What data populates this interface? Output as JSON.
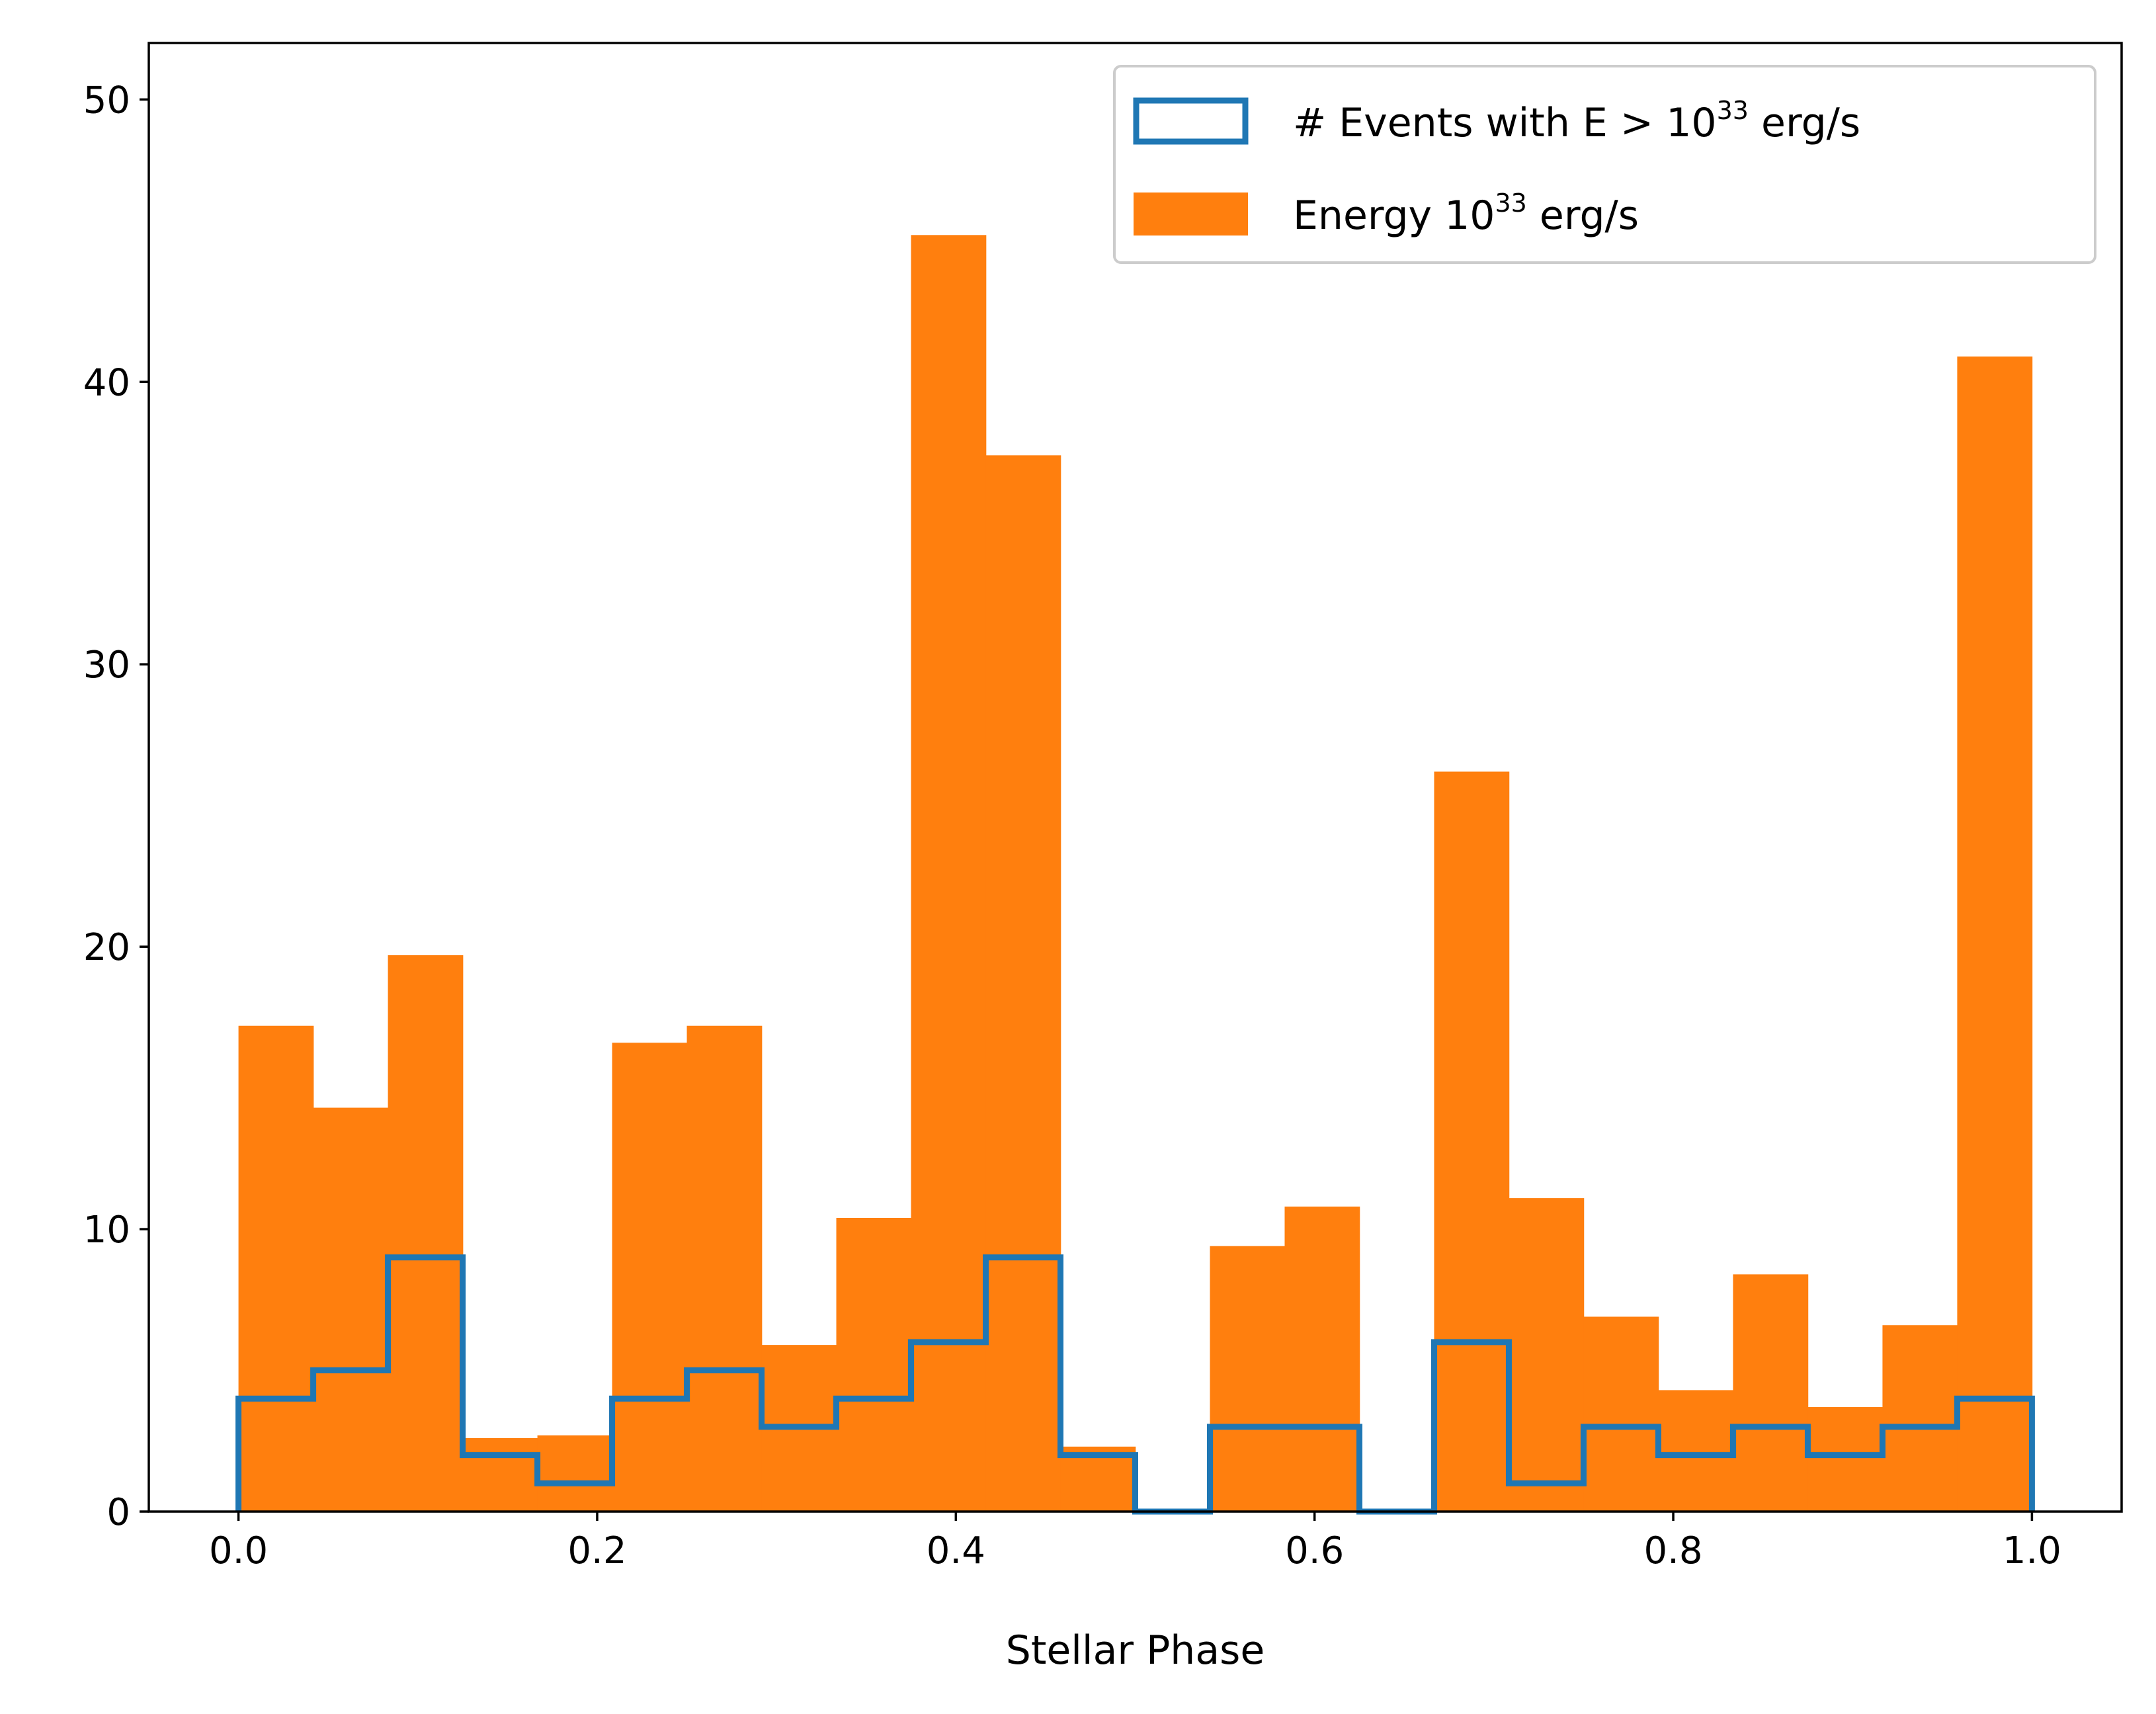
{
  "chart_data": {
    "type": "bar",
    "xlabel": "Stellar Phase",
    "ylabel": "",
    "xlim": [
      -0.05,
      1.05
    ],
    "ylim": [
      0,
      52
    ],
    "x_ticks": [
      "0.0",
      "0.2",
      "0.4",
      "0.6",
      "0.8",
      "1.0"
    ],
    "y_ticks": [
      "0",
      "10",
      "20",
      "30",
      "40",
      "50"
    ],
    "bin_edges": [
      0.0,
      0.04167,
      0.08333,
      0.125,
      0.16667,
      0.20833,
      0.25,
      0.29167,
      0.33333,
      0.375,
      0.41667,
      0.45833,
      0.5,
      0.54167,
      0.58333,
      0.625,
      0.66667,
      0.70833,
      0.75,
      0.79167,
      0.83333,
      0.875,
      0.91667,
      0.95833,
      1.0
    ],
    "series": [
      {
        "name": "Energy 10",
        "name_sup": "33",
        "name_suffix": " erg/s",
        "style": "filled",
        "color": "#ff7f0e",
        "values": [
          17.2,
          14.3,
          19.7,
          2.6,
          2.7,
          16.6,
          17.2,
          5.9,
          10.4,
          45.2,
          37.4,
          2.3,
          0,
          9.4,
          10.8,
          0,
          26.2,
          11.1,
          6.9,
          4.3,
          8.4,
          3.7,
          6.6,
          40.9
        ]
      },
      {
        "name": "# Events with E > 10",
        "name_sup": "33",
        "name_suffix": " erg/s",
        "style": "step",
        "color": "#1f77b4",
        "values": [
          4,
          5,
          9,
          2,
          1,
          4,
          5,
          3,
          4,
          6,
          9,
          2,
          0,
          3,
          3,
          0,
          6,
          1,
          3,
          2,
          3,
          2,
          3,
          4
        ]
      }
    ],
    "legend_position": "top-right",
    "grid": false
  }
}
